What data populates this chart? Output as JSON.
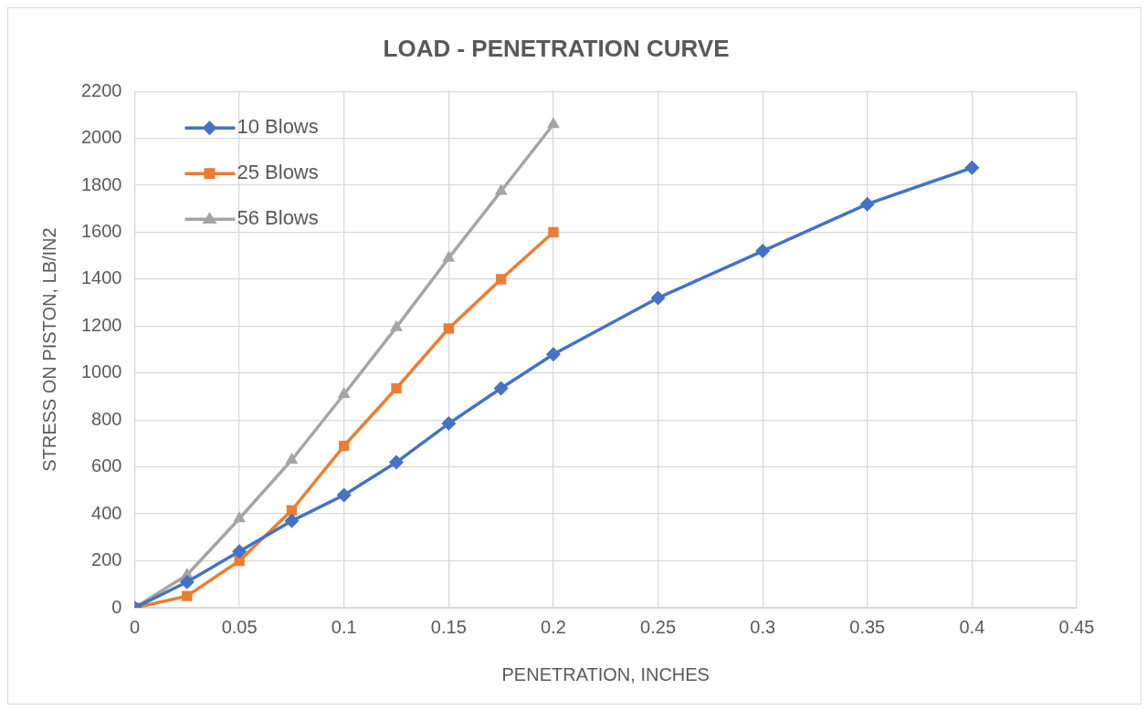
{
  "chart_data": {
    "type": "line",
    "title": "LOAD - PENETRATION CURVE",
    "xlabel": "PENETRATION, INCHES",
    "ylabel": "STRESS ON PISTON, LB/IN2",
    "xlim": [
      0,
      0.45
    ],
    "xticks": [
      0,
      0.05,
      0.1,
      0.15,
      0.2,
      0.25,
      0.3,
      0.35,
      0.4,
      0.45
    ],
    "ylim": [
      0,
      2200
    ],
    "yticks": [
      0,
      200,
      400,
      600,
      800,
      1000,
      1200,
      1400,
      1600,
      1800,
      2000,
      2200
    ],
    "grid": true,
    "legend": "top left",
    "line_style": "solid",
    "series": [
      {
        "name": "10 Blows",
        "color": "#4472c4",
        "marker": "diamond",
        "x": [
          0,
          0.025,
          0.05,
          0.075,
          0.1,
          0.125,
          0.15,
          0.175,
          0.2,
          0.25,
          0.3,
          0.35,
          0.4
        ],
        "values": [
          0,
          110,
          240,
          370,
          480,
          620,
          785,
          935,
          1080,
          1320,
          1520,
          1720,
          1875
        ]
      },
      {
        "name": "25 Blows",
        "color": "#ed7d31",
        "marker": "square",
        "x": [
          0,
          0.025,
          0.05,
          0.075,
          0.1,
          0.125,
          0.15,
          0.175,
          0.2
        ],
        "values": [
          0,
          50,
          200,
          415,
          690,
          935,
          1190,
          1400,
          1600
        ]
      },
      {
        "name": "56 Blows",
        "color": "#a5a5a5",
        "marker": "triangle",
        "x": [
          0,
          0.025,
          0.05,
          0.075,
          0.1,
          0.125,
          0.15,
          0.175,
          0.2
        ],
        "values": [
          0,
          140,
          380,
          630,
          910,
          1195,
          1490,
          1775,
          2060
        ]
      }
    ]
  }
}
